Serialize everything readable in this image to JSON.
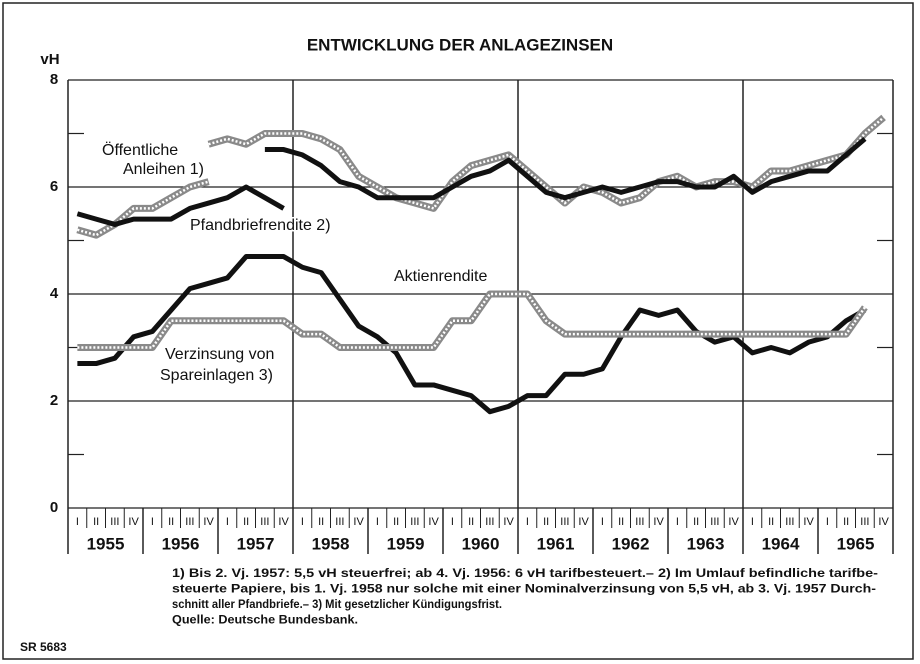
{
  "chart_data": {
    "type": "line",
    "title": "ENTWICKLUNG DER ANLAGEZINSEN",
    "y_label": "vH",
    "categories": [
      "I",
      "II",
      "III",
      "IV",
      "I",
      "II",
      "III",
      "IV",
      "I",
      "II",
      "III",
      "IV",
      "I",
      "II",
      "III",
      "IV",
      "I",
      "II",
      "III",
      "IV",
      "I",
      "II",
      "III",
      "IV",
      "I",
      "II",
      "III",
      "IV",
      "I",
      "II",
      "III",
      "IV",
      "I",
      "II",
      "III",
      "IV",
      "I",
      "II",
      "III",
      "IV",
      "I",
      "II",
      "III",
      "IV"
    ],
    "category_groups": [
      "1955",
      "1956",
      "1957",
      "1958",
      "1959",
      "1960",
      "1961",
      "1962",
      "1963",
      "1964",
      "1965"
    ],
    "ylim": [
      0,
      8
    ],
    "yticks": [
      0,
      2,
      4,
      6,
      8
    ],
    "minor_yticks": [
      1,
      3,
      5,
      7
    ],
    "grid": true,
    "series": [
      {
        "name": [
          "Öffentliche",
          "Anleihen 1)"
        ],
        "color": "#8a8a8a",
        "pattern": "hatched",
        "segments": [
          [
            5.2,
            5.1,
            5.3,
            5.6,
            5.6,
            5.8,
            6.0,
            6.1,
            null,
            null,
            null,
            null,
            null,
            null,
            null,
            null,
            null,
            null,
            null,
            null,
            null,
            null,
            null,
            null,
            null,
            null,
            null,
            null,
            null,
            null,
            null,
            null,
            null,
            null,
            null,
            null,
            null,
            null,
            null,
            null,
            null,
            null,
            null,
            null
          ],
          [
            null,
            null,
            null,
            null,
            null,
            null,
            null,
            6.8,
            6.9,
            6.8,
            7.0,
            7.0,
            7.0,
            6.9,
            6.7,
            6.2,
            6.0,
            5.8,
            5.7,
            5.6,
            6.1,
            6.4,
            6.5,
            6.6,
            6.3,
            6.0,
            5.7,
            6.0,
            5.9,
            5.7,
            5.8,
            6.1,
            6.2,
            6.0,
            6.1,
            6.1,
            6.0,
            6.3,
            6.3,
            6.4,
            6.5,
            6.6,
            7.0,
            7.3
          ]
        ]
      },
      {
        "name": [
          "Pfandbriefrendite 2)"
        ],
        "color": "#111111",
        "pattern": "solid",
        "segments": [
          [
            5.5,
            5.4,
            5.3,
            5.4,
            5.4,
            5.4,
            5.6,
            5.7,
            5.8,
            6.0,
            5.8,
            5.6,
            null,
            null,
            null,
            null,
            null,
            null,
            null,
            null,
            null,
            null,
            null,
            null,
            null,
            null,
            null,
            null,
            null,
            null,
            null,
            null,
            null,
            null,
            null,
            null,
            null,
            null,
            null,
            null,
            null,
            null,
            null,
            null
          ],
          [
            null,
            null,
            null,
            null,
            null,
            null,
            null,
            null,
            null,
            null,
            6.7,
            6.7,
            6.6,
            6.4,
            6.1,
            6.0,
            5.8,
            5.8,
            5.8,
            5.8,
            6.0,
            6.2,
            6.3,
            6.5,
            6.2,
            5.9,
            5.8,
            5.9,
            6.0,
            5.9,
            6.0,
            6.1,
            6.1,
            6.0,
            6.0,
            6.2,
            5.9,
            6.1,
            6.2,
            6.3,
            6.3,
            6.6,
            6.9,
            null
          ]
        ]
      },
      {
        "name": [
          "Aktienrendite"
        ],
        "color": "#111111",
        "pattern": "solid",
        "segments": [
          [
            2.7,
            2.7,
            2.8,
            3.2,
            3.3,
            3.7,
            4.1,
            4.2,
            4.3,
            4.7,
            4.7,
            4.7,
            4.5,
            4.4,
            3.9,
            3.4,
            3.2,
            2.9,
            2.3,
            2.3,
            2.2,
            2.1,
            1.8,
            1.9,
            2.1,
            2.1,
            2.5,
            2.5,
            2.6,
            3.2,
            3.7,
            3.6,
            3.7,
            3.3,
            3.1,
            3.2,
            2.9,
            3.0,
            2.9,
            3.1,
            3.2,
            3.5,
            3.7,
            null
          ]
        ]
      },
      {
        "name": [
          "Verzinsung von",
          "Spareinlagen 3)"
        ],
        "color": "#8a8a8a",
        "pattern": "hatched",
        "segments": [
          [
            3.0,
            3.0,
            3.0,
            3.0,
            3.0,
            3.5,
            3.5,
            3.5,
            3.5,
            3.5,
            3.5,
            3.5,
            3.25,
            3.25,
            3.0,
            3.0,
            3.0,
            3.0,
            3.0,
            3.0,
            3.5,
            3.5,
            4.0,
            4.0,
            4.0,
            3.5,
            3.25,
            3.25,
            3.25,
            3.25,
            3.25,
            3.25,
            3.25,
            3.25,
            3.25,
            3.25,
            3.25,
            3.25,
            3.25,
            3.25,
            3.25,
            3.25,
            3.75,
            null
          ]
        ]
      }
    ],
    "footnotes": [
      "1) Bis 2. Vj. 1957: 5,5 vH steuerfrei; ab 4. Vj. 1956: 6 vH tarifbesteuert.– 2) Im Umlauf befindliche tarifbe-",
      "steuerte Papiere, bis 1. Vj. 1958 nur solche mit einer Nominalverzinsung von 5,5 vH, ab 3. Vj. 1957 Durch-",
      "schnitt aller Pfandbriefe.– 3) Mit gesetzlicher Kündigungsfrist.",
      "Quelle: Deutsche Bundesbank."
    ],
    "code": "SR 5683"
  }
}
